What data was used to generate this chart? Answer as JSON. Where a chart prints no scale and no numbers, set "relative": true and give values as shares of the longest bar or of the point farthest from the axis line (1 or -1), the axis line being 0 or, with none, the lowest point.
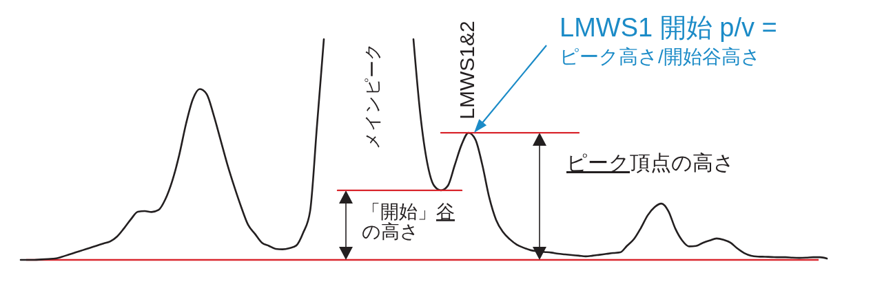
{
  "chart_data": {
    "type": "line",
    "relative": true,
    "tick_labels": false,
    "categories": [
      null,
      null,
      null,
      null,
      null,
      null,
      null,
      null,
      null,
      null,
      null,
      null,
      null,
      null,
      null,
      null,
      null,
      null,
      null,
      null,
      null,
      null,
      null,
      null,
      null,
      null,
      null,
      null,
      null,
      null,
      null,
      null,
      null,
      null,
      null,
      null,
      null,
      null,
      null,
      null,
      null,
      null,
      null,
      null,
      null,
      null,
      null,
      null,
      null,
      null,
      null,
      null,
      null,
      null,
      null,
      null,
      null,
      null,
      null,
      null,
      null,
      null,
      null,
      null,
      null,
      null,
      null,
      null,
      null,
      null,
      null,
      null,
      null,
      null,
      null,
      null,
      null,
      null,
      null,
      null,
      null,
      null,
      null,
      null,
      null,
      null,
      null,
      null,
      null,
      null,
      null,
      null,
      null,
      null,
      null,
      null,
      null,
      null,
      null,
      null,
      null,
      null,
      null,
      null,
      null,
      null,
      null,
      null,
      null,
      null,
      null,
      null,
      null,
      null,
      null,
      null,
      null,
      null
    ],
    "series": [
      {
        "color": "#231f20",
        "values": [
          0,
          0,
          0,
          0.002,
          0.004,
          0.006,
          0.014,
          0.024,
          0.034,
          0.044,
          0.054,
          0.064,
          0.074,
          0.084,
          0.106,
          0.143,
          0.184,
          0.218,
          0.221,
          0.217,
          0.226,
          0.275,
          0.358,
          0.474,
          0.617,
          0.729,
          0.774,
          0.751,
          0.657,
          0.545,
          0.432,
          0.332,
          0.24,
          0.159,
          0.118,
          0.078,
          0.064,
          0.05,
          0.048,
          0.053,
          0.065,
          0.123,
          0.22,
          0.607,
          1,
          null,
          null,
          null,
          null,
          null,
          null,
          null,
          null,
          null,
          null,
          null,
          null,
          1,
          0.659,
          0.44,
          0.336,
          0.315,
          0.336,
          0.43,
          0.523,
          0.576,
          0.545,
          0.43,
          0.283,
          0.181,
          0.126,
          0.093,
          0.069,
          0.055,
          0.044,
          0.039,
          0.036,
          0.033,
          0.028,
          0.025,
          0.022,
          0.019,
          0.016,
          0.019,
          0.023,
          0.027,
          0.031,
          0.034,
          0.064,
          0.094,
          0.144,
          0.202,
          0.239,
          0.255,
          0.221,
          0.142,
          0.088,
          0.061,
          0.063,
          0.077,
          0.088,
          0.097,
          0.091,
          0.078,
          0.052,
          0.031,
          0.019,
          0.015,
          0.014,
          0.013,
          0.012,
          0.012,
          0.01,
          0.009,
          0.01,
          0.012,
          0.012,
          0.006
        ]
      },
      {
        "color": "#d9272e",
        "values": [
          null,
          null,
          null,
          null,
          null,
          null,
          null,
          null,
          null,
          null,
          null,
          null,
          null,
          null,
          null,
          null,
          null,
          null,
          null,
          null,
          null,
          null,
          null,
          null,
          null,
          null,
          null,
          null,
          null,
          null,
          null,
          null,
          null,
          null,
          null,
          null,
          null,
          null,
          null,
          null,
          null,
          null,
          null,
          null,
          null,
          null,
          0.315,
          0.315,
          0.315,
          0.315,
          0.315,
          0.315,
          0.315,
          0.315,
          0.315,
          0.315,
          0.315,
          0.315,
          0.315,
          0.315,
          0.315,
          0.315,
          0.315,
          0.315,
          0.315,
          null,
          null,
          null,
          null,
          null,
          null,
          null,
          null,
          null,
          null,
          null,
          null,
          null,
          null,
          null,
          null,
          null,
          null,
          null,
          null,
          null,
          null,
          null,
          null,
          null,
          null,
          null,
          null,
          null,
          null,
          null,
          null,
          null,
          null,
          null,
          null,
          null,
          null,
          null,
          null,
          null,
          null,
          null,
          null,
          null,
          null,
          null,
          null,
          null,
          null,
          null,
          null,
          null
        ]
      },
      {
        "color": "#d9272e",
        "values": [
          null,
          null,
          null,
          null,
          null,
          null,
          null,
          null,
          null,
          null,
          null,
          null,
          null,
          null,
          null,
          null,
          null,
          null,
          null,
          null,
          null,
          null,
          null,
          null,
          null,
          null,
          null,
          null,
          null,
          null,
          null,
          null,
          null,
          null,
          null,
          null,
          null,
          null,
          null,
          null,
          null,
          null,
          null,
          null,
          null,
          null,
          null,
          null,
          null,
          null,
          null,
          null,
          null,
          null,
          null,
          null,
          null,
          null,
          null,
          null,
          null,
          0.576,
          0.576,
          0.576,
          0.576,
          0.576,
          0.576,
          0.576,
          0.576,
          0.576,
          0.576,
          0.576,
          0.576,
          0.576,
          0.576,
          0.576,
          0.576,
          0.576,
          0.576,
          0.576,
          0.576,
          0.576,
          null,
          null,
          null,
          null,
          null,
          null,
          null,
          null,
          null,
          null,
          null,
          null,
          null,
          null,
          null,
          null,
          null,
          null,
          null,
          null,
          null,
          null,
          null,
          null,
          null,
          null,
          null,
          null,
          null,
          null,
          null,
          null,
          null,
          null,
          null,
          null
        ]
      }
    ],
    "ref_lines": [
      {
        "axis": "y",
        "value": 0,
        "color": "#d9272e"
      }
    ],
    "annotations": [
      "LMWS1 開始 p/v =",
      "ピーク高さ/開始谷高さ",
      "メインピーク",
      "LMWS1&2",
      "ピーク頂点の高さ",
      "「開始」谷",
      "の高さ"
    ]
  }
}
